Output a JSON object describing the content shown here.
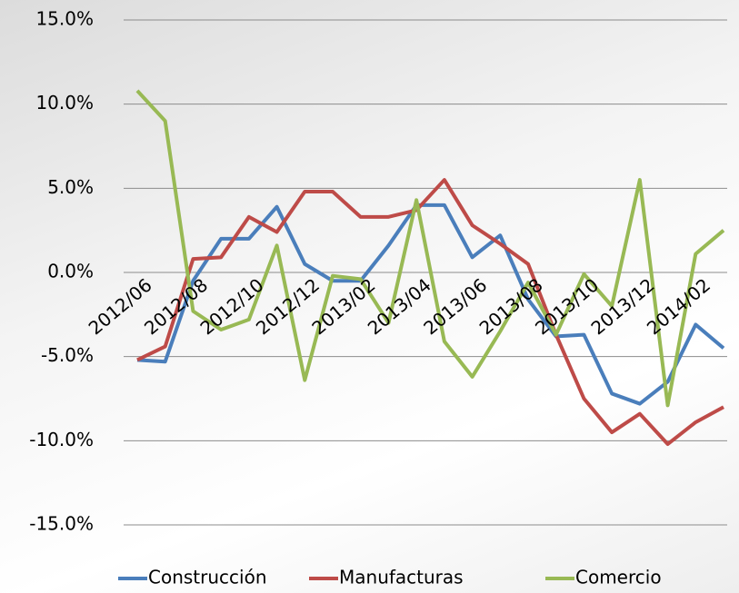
{
  "chart_data": {
    "type": "line",
    "categories": [
      "2012/06",
      null,
      "2012/08",
      null,
      "2012/10",
      null,
      "2012/12",
      null,
      "2013/02",
      null,
      "2013/04",
      null,
      "2013/06",
      null,
      "2013/08",
      null,
      "2013/10",
      null,
      "2013/12",
      null,
      "2014/02",
      null
    ],
    "series": [
      {
        "name": "Construcción",
        "color": "#4a7ebb",
        "values": [
          -5.2,
          -5.3,
          -0.5,
          2.0,
          2.0,
          3.9,
          0.5,
          -0.5,
          -0.5,
          1.6,
          4.0,
          4.0,
          0.9,
          2.2,
          -1.6,
          -3.8,
          -3.7,
          -7.2,
          -7.8,
          -6.5,
          -3.1,
          -4.5
        ]
      },
      {
        "name": "Manufacturas",
        "color": "#be4b48",
        "values": [
          -5.2,
          -4.4,
          0.8,
          0.9,
          3.3,
          2.4,
          4.8,
          4.8,
          3.3,
          3.3,
          3.7,
          5.5,
          2.8,
          1.7,
          0.5,
          -3.7,
          -7.5,
          -9.5,
          -8.4,
          -10.2,
          -8.9,
          -8.0
        ]
      },
      {
        "name": "Comercio",
        "color": "#98b954",
        "values": [
          10.8,
          9.0,
          -2.3,
          -3.4,
          -2.8,
          1.6,
          -6.4,
          -0.2,
          -0.4,
          -3.0,
          4.3,
          -4.1,
          -6.2,
          -3.5,
          -0.6,
          -3.7,
          -0.1,
          -2.0,
          5.5,
          -7.9,
          1.1,
          2.5
        ]
      }
    ],
    "ylim": [
      -15,
      15
    ],
    "yticks": [
      {
        "value": -15,
        "label": "-15.0%"
      },
      {
        "value": -10,
        "label": "-10.0%"
      },
      {
        "value": -5,
        "label": "-5.0%"
      },
      {
        "value": 0,
        "label": "0.0%"
      },
      {
        "value": 5,
        "label": "5.0%"
      },
      {
        "value": 10,
        "label": "10.0%"
      },
      {
        "value": 15,
        "label": "15.0%"
      }
    ],
    "grid": true,
    "legend": "bottom"
  }
}
